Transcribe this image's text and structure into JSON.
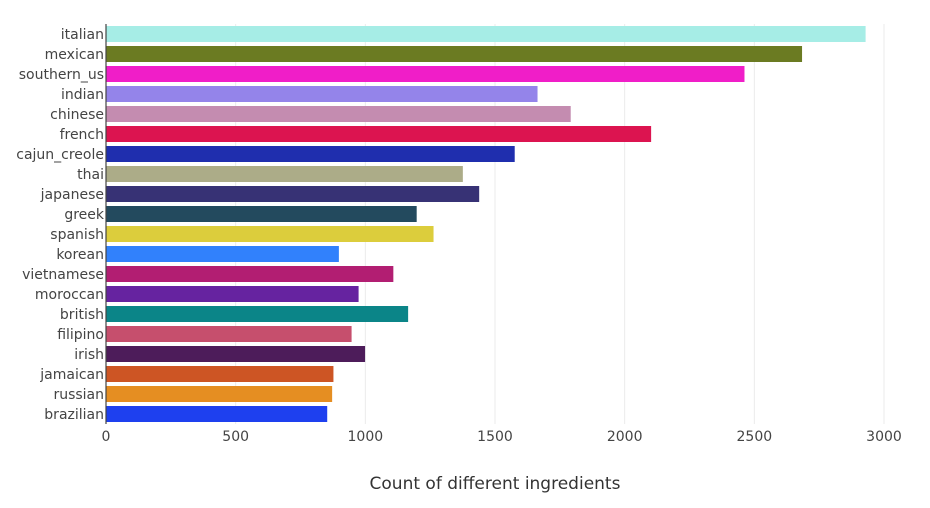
{
  "chart_data": {
    "type": "bar",
    "orientation": "horizontal",
    "categories": [
      "italian",
      "mexican",
      "southern_us",
      "indian",
      "chinese",
      "french",
      "cajun_creole",
      "thai",
      "japanese",
      "greek",
      "spanish",
      "korean",
      "vietnamese",
      "moroccan",
      "british",
      "filipino",
      "irish",
      "jamaican",
      "russian",
      "brazilian"
    ],
    "values": [
      2929,
      2684,
      2462,
      1664,
      1792,
      2102,
      1576,
      1376,
      1439,
      1198,
      1263,
      898,
      1108,
      974,
      1165,
      947,
      999,
      877,
      872,
      853
    ],
    "colors": [
      "#a6ede6",
      "#6b7b22",
      "#f01ec8",
      "#9484ea",
      "#c48cb0",
      "#dc1450",
      "#1f2eae",
      "#acac88",
      "#373275",
      "#234a5e",
      "#dccd3c",
      "#3181fc",
      "#b21e72",
      "#6623a0",
      "#0b8588",
      "#c64f6d",
      "#4d1c5a",
      "#cd5524",
      "#e58e22",
      "#1e40ef"
    ],
    "xlabel": "Count of different ingredients",
    "ylabel": "",
    "xlim": [
      0,
      3000
    ],
    "xticks": [
      0,
      500,
      1000,
      1500,
      2000,
      2500,
      3000
    ],
    "grid": true
  }
}
